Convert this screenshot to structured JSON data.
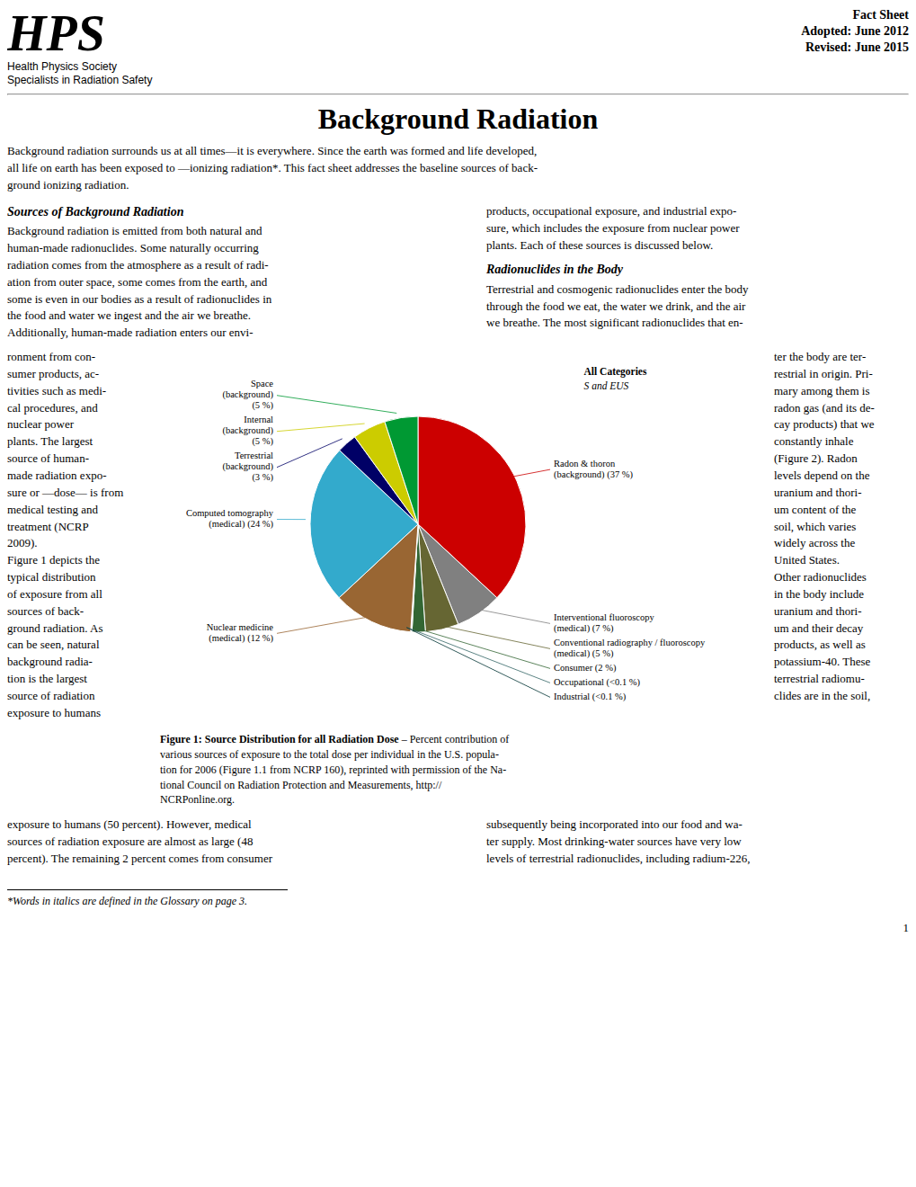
{
  "chart_data": {
    "type": "pie",
    "title": "Background Radiation",
    "categories": [
      "Radon & thoron\n(background) (37 %)",
      "Interventional fluoroscopy\n(medical) (7 %)",
      "Conventional radiography / fluoroscopy\n(medical) (5 %)",
      "Consumer (2 %)",
      "Occupational (<0.1 %)",
      "Industrial (<0.1 %)",
      "Nuclear medicine\n(medical) (12 %)",
      "Computed tomography\n(medical) (24 %)",
      "Terrestrial\n(background)\n(3 %)",
      "Internal\n(background)\n(5 %)",
      "Space\n(background)\n(5 %)"
    ],
    "values": [
      37,
      7,
      5,
      2,
      0.1,
      0.1,
      12,
      24,
      3,
      5,
      5
    ],
    "colors": [
      "#CC0000",
      "#808080",
      "#666633",
      "#336633",
      "#336666",
      "#003333",
      "#996633",
      "#33AACC",
      "#000066",
      "#CCCC00",
      "#009933"
    ],
    "annotations": [
      "HPS",
      "Health Physics Society",
      "Specialists in Radiation Safety",
      "Fact Sheet",
      "Adopted: June 2012",
      "Revised: June 2015",
      "Background radiation surrounds us at all times—it is everywhere. Since the earth was formed and life developed,\nall life on earth has been exposed to —ionizing radiation*. This fact sheet addresses the baseline sources of back-\nground ionizing radiation.",
      "Sources of Background Radiation",
      "Background radiation is emitted from both natural and\nhuman-made radionuclides. Some naturally occurring\nradiation comes from the atmosphere as a result of radi-\nation from outer space, some comes from the earth, and\nsome is even in our bodies as a result of radionuclides in\nthe food and water we ingest and the air we breathe.\nAdditionally, human-made radiation enters our envi-",
      "ronment from con-\nsumer products, ac-\ntivities such as medi-\ncal procedures, and\nnuclear power\nplants. The largest\nsource of human-\nmade radiation expo-\nsure or —dose— is from\nmedical testing and\ntreatment (NCRP\n2009).",
      "Figure 1 depicts the\ntypical distribution\nof exposure from all\nsources of back-\nground radiation. As\ncan be seen, natural\nbackground radia-\ntion is the largest\nsource of radiation\nexposure to humans",
      "products, occupational exposure, and industrial expo-\nsure, which includes the exposure from nuclear power\nplants. Each of these sources is discussed below.",
      "Radionuclides in the Body",
      "Terrestrial and cosmogenic radionuclides enter the body\nthrough the food we eat, the water we drink, and the air\nwe breathe. The most significant radionuclides that en-",
      "ter the body are ter-\nrestrial in origin. Pri-\nmary among them is\nradon gas (and its de-\ncay products) that we\nconstantly inhale\n(Figure 2). Radon\nlevels depend on the\nuranium and thori-\num content of the\nsoil, which varies\nwidely across the\nUnited States.",
      "Other radionuclides\nin the body include\nuranium and thori-\num and their decay\nproducts, as well as\npotassium-40. These\nterrestrial radiomu-\nclides are in the soil,",
      "All Categories",
      "S and EUS",
      "Figure 1: Source Distribution for all Radiation Dose",
      "– Percent contribution of",
      "various sources of exposure to the total dose per individual in the U.S. popula-\ntion for 2006 (Figure 1.1 from NCRP 160), reprinted with permission of the Na-\ntional Council on Radiation Protection and Measurements, http://",
      "NCRPonline.org.",
      "exposure to humans (50 percent). However, medical\nsources of radiation exposure are almost as large (48\npercent). The remaining 2 percent comes from consumer",
      "subsequently being incorporated into our food and wa-\nter supply. Most drinking-water sources have very low\nlevels of terrestrial radionuclides, including radium-226,",
      "*Words in italics are defined in the Glossary on page 3.",
      "1"
    ]
  }
}
